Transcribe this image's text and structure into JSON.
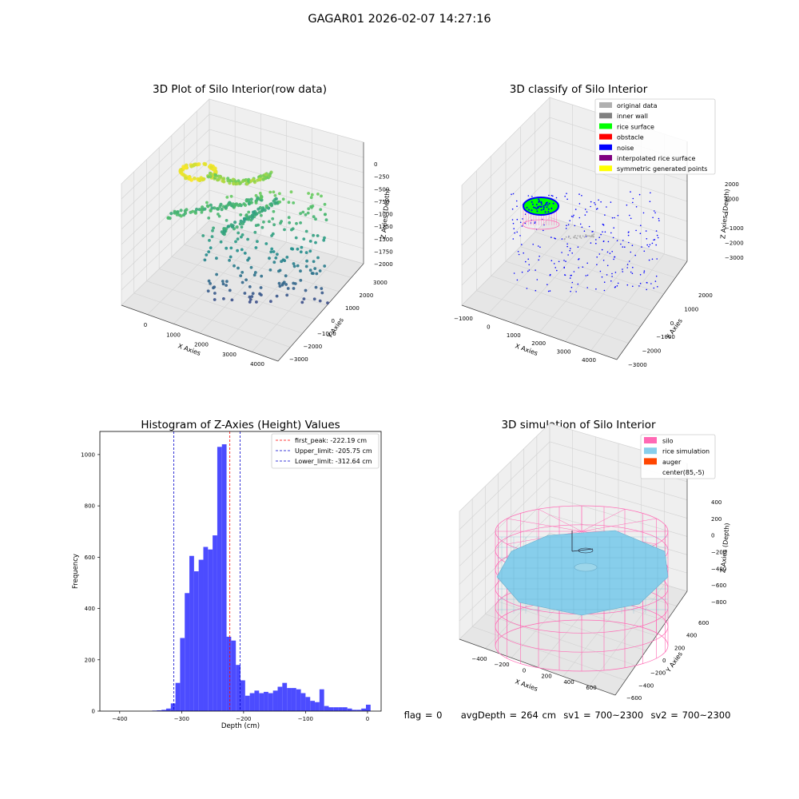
{
  "suptitle": "GAGAR01 2026-02-07 14:27:16",
  "status_line": "flag = 0     avgDepth = 264 cm  sv1 = 700~2300  sv2 = 700~2300",
  "colors": {
    "histogram_bar": "#4c4cff",
    "first_peak_line": "#ff0000",
    "limit_lines": "#0000cc",
    "silo": "#ff69b4",
    "rice_simulation": "#87ceeb",
    "auger": "#ff4500",
    "original_data": "#b0b0b0",
    "inner_wall": "#808080",
    "rice_surface": "#00ff00",
    "obstacle": "#ff0000",
    "noise": "#0000ff",
    "interpolated_rice_surface": "#800080",
    "symmetric_generated_points": "#ffff00"
  },
  "chart_data": [
    {
      "type": "scatter",
      "title": "3D Plot of Silo Interior(row data)",
      "xlabel": "X Axies",
      "ylabel": "Y Axies",
      "zlabel": "Z Axies (Depth)",
      "x_ticks": [
        "0",
        "1000",
        "2000",
        "3000",
        "4000"
      ],
      "y_ticks": [
        "−3000",
        "−2000",
        "−1000",
        "0",
        "1000",
        "2000",
        "3000"
      ],
      "z_ticks": [
        "0",
        "−250",
        "−500",
        "−750",
        "−1000",
        "−1250",
        "−1500",
        "−1750",
        "−2000"
      ],
      "colormap": "viridis"
    },
    {
      "type": "scatter",
      "title": "3D classify of Silo Interior",
      "xlabel": "X Axies",
      "ylabel": "Y Axies",
      "zlabel": "Z Axies (Depth)",
      "x_ticks": [
        "−1000",
        "0",
        "1000",
        "2000",
        "3000",
        "4000"
      ],
      "y_ticks": [
        "−3000",
        "−2000",
        "−1000",
        "0",
        "1000",
        "2000"
      ],
      "z_ticks": [
        "2000",
        "1000",
        "0",
        "−1000",
        "−2000",
        "−3000"
      ],
      "legend": [
        "original data",
        "inner wall",
        "rice surface",
        "obstacle",
        "noise",
        "interpolated rice surface",
        "symmetric generated points"
      ],
      "legend_position": "top-right"
    },
    {
      "type": "bar",
      "title": "Histogram of Z-Axies (Height) Values",
      "xlabel": "Depth (cm)",
      "ylabel": "Frequency",
      "xlim": [
        -432,
        22
      ],
      "ylim": [
        0,
        1090
      ],
      "x_ticks": [
        -400,
        -300,
        -200,
        -100,
        0
      ],
      "x_tick_labels": [
        "−400",
        "−300",
        "−200",
        "−100",
        "0"
      ],
      "y_ticks": [
        0,
        200,
        400,
        600,
        800,
        1000
      ],
      "bin_width": 7.5,
      "bin_starts": [
        -347.5,
        -340,
        -332.5,
        -325,
        -317.5,
        -310,
        -302.5,
        -295,
        -287.5,
        -280,
        -272.5,
        -265,
        -257.5,
        -250,
        -242.5,
        -235,
        -227.5,
        -220,
        -212.5,
        -205,
        -197.5,
        -190,
        -182.5,
        -175,
        -167.5,
        -160,
        -152.5,
        -145,
        -137.5,
        -130,
        -122.5,
        -115,
        -107.5,
        -100,
        -92.5,
        -85,
        -77.5,
        -70,
        -62.5,
        -55,
        -47.5,
        -40,
        -32.5,
        -25,
        -17.5,
        -10,
        -2.5
      ],
      "values": [
        2,
        3,
        5,
        10,
        30,
        110,
        285,
        460,
        605,
        545,
        590,
        640,
        630,
        685,
        1030,
        1040,
        290,
        275,
        180,
        120,
        60,
        70,
        80,
        70,
        75,
        70,
        80,
        95,
        110,
        90,
        90,
        85,
        70,
        55,
        40,
        35,
        85,
        20,
        15,
        15,
        15,
        15,
        10,
        5,
        5,
        10,
        25
      ],
      "vlines": [
        {
          "name": "first_peak: -222.19 cm",
          "x": -222.19,
          "color": "#ff0000"
        },
        {
          "name": "Upper_limit: -205.75 cm",
          "x": -205.75,
          "color": "#0000cc"
        },
        {
          "name": "Lower_limit: -312.64 cm",
          "x": -312.64,
          "color": "#0000cc"
        }
      ],
      "legend_position": "top-right"
    },
    {
      "type": "scatter",
      "title": "3D simulation of Silo Interior",
      "xlabel": "X Axies",
      "ylabel": "Y Axies",
      "zlabel": "Z Axies (Depth)",
      "x_ticks": [
        "−400",
        "−200",
        "0",
        "200",
        "400",
        "600"
      ],
      "y_ticks": [
        "−600",
        "−400",
        "−200",
        "0",
        "200",
        "400",
        "600"
      ],
      "z_ticks": [
        "400",
        "200",
        "0",
        "−200",
        "−400",
        "−600",
        "−800"
      ],
      "legend": [
        "silo",
        "rice simulation",
        "auger",
        "center(85,-5)"
      ],
      "legend_position": "top-right"
    }
  ]
}
